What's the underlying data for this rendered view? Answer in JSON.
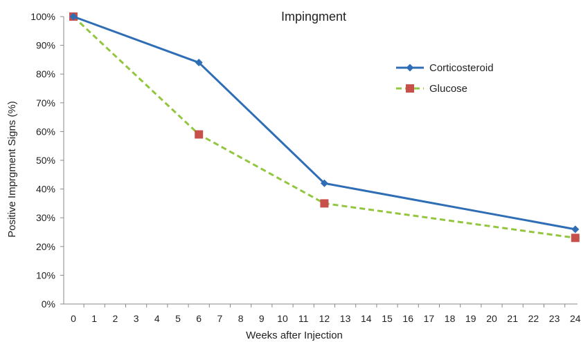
{
  "chart_data": {
    "type": "line",
    "title": "Impingment",
    "xlabel": "Weeks after Injection",
    "ylabel": "Positive Imprgment Signs (%)",
    "x_ticks": [
      0,
      1,
      2,
      3,
      4,
      5,
      6,
      7,
      8,
      9,
      10,
      11,
      12,
      13,
      14,
      15,
      16,
      17,
      18,
      19,
      20,
      21,
      22,
      23,
      24
    ],
    "xlim": [
      0,
      24
    ],
    "y_ticks": [
      "0%",
      "10%",
      "20%",
      "30%",
      "40%",
      "50%",
      "60%",
      "70%",
      "80%",
      "90%",
      "100%"
    ],
    "ylim": [
      0,
      100
    ],
    "grid": false,
    "legend_position": "right",
    "series": [
      {
        "name": "Corticosteroid",
        "x": [
          0,
          6,
          12,
          24
        ],
        "y": [
          100,
          84,
          42,
          26
        ],
        "color": "#2F6EB5",
        "marker": "diamond",
        "line_style": "solid"
      },
      {
        "name": "Glucose",
        "x": [
          0,
          6,
          12,
          24
        ],
        "y": [
          100,
          59,
          35,
          23
        ],
        "color": "#93C63F",
        "marker_color": "#C8504B",
        "marker": "square",
        "line_style": "dashed"
      }
    ]
  }
}
